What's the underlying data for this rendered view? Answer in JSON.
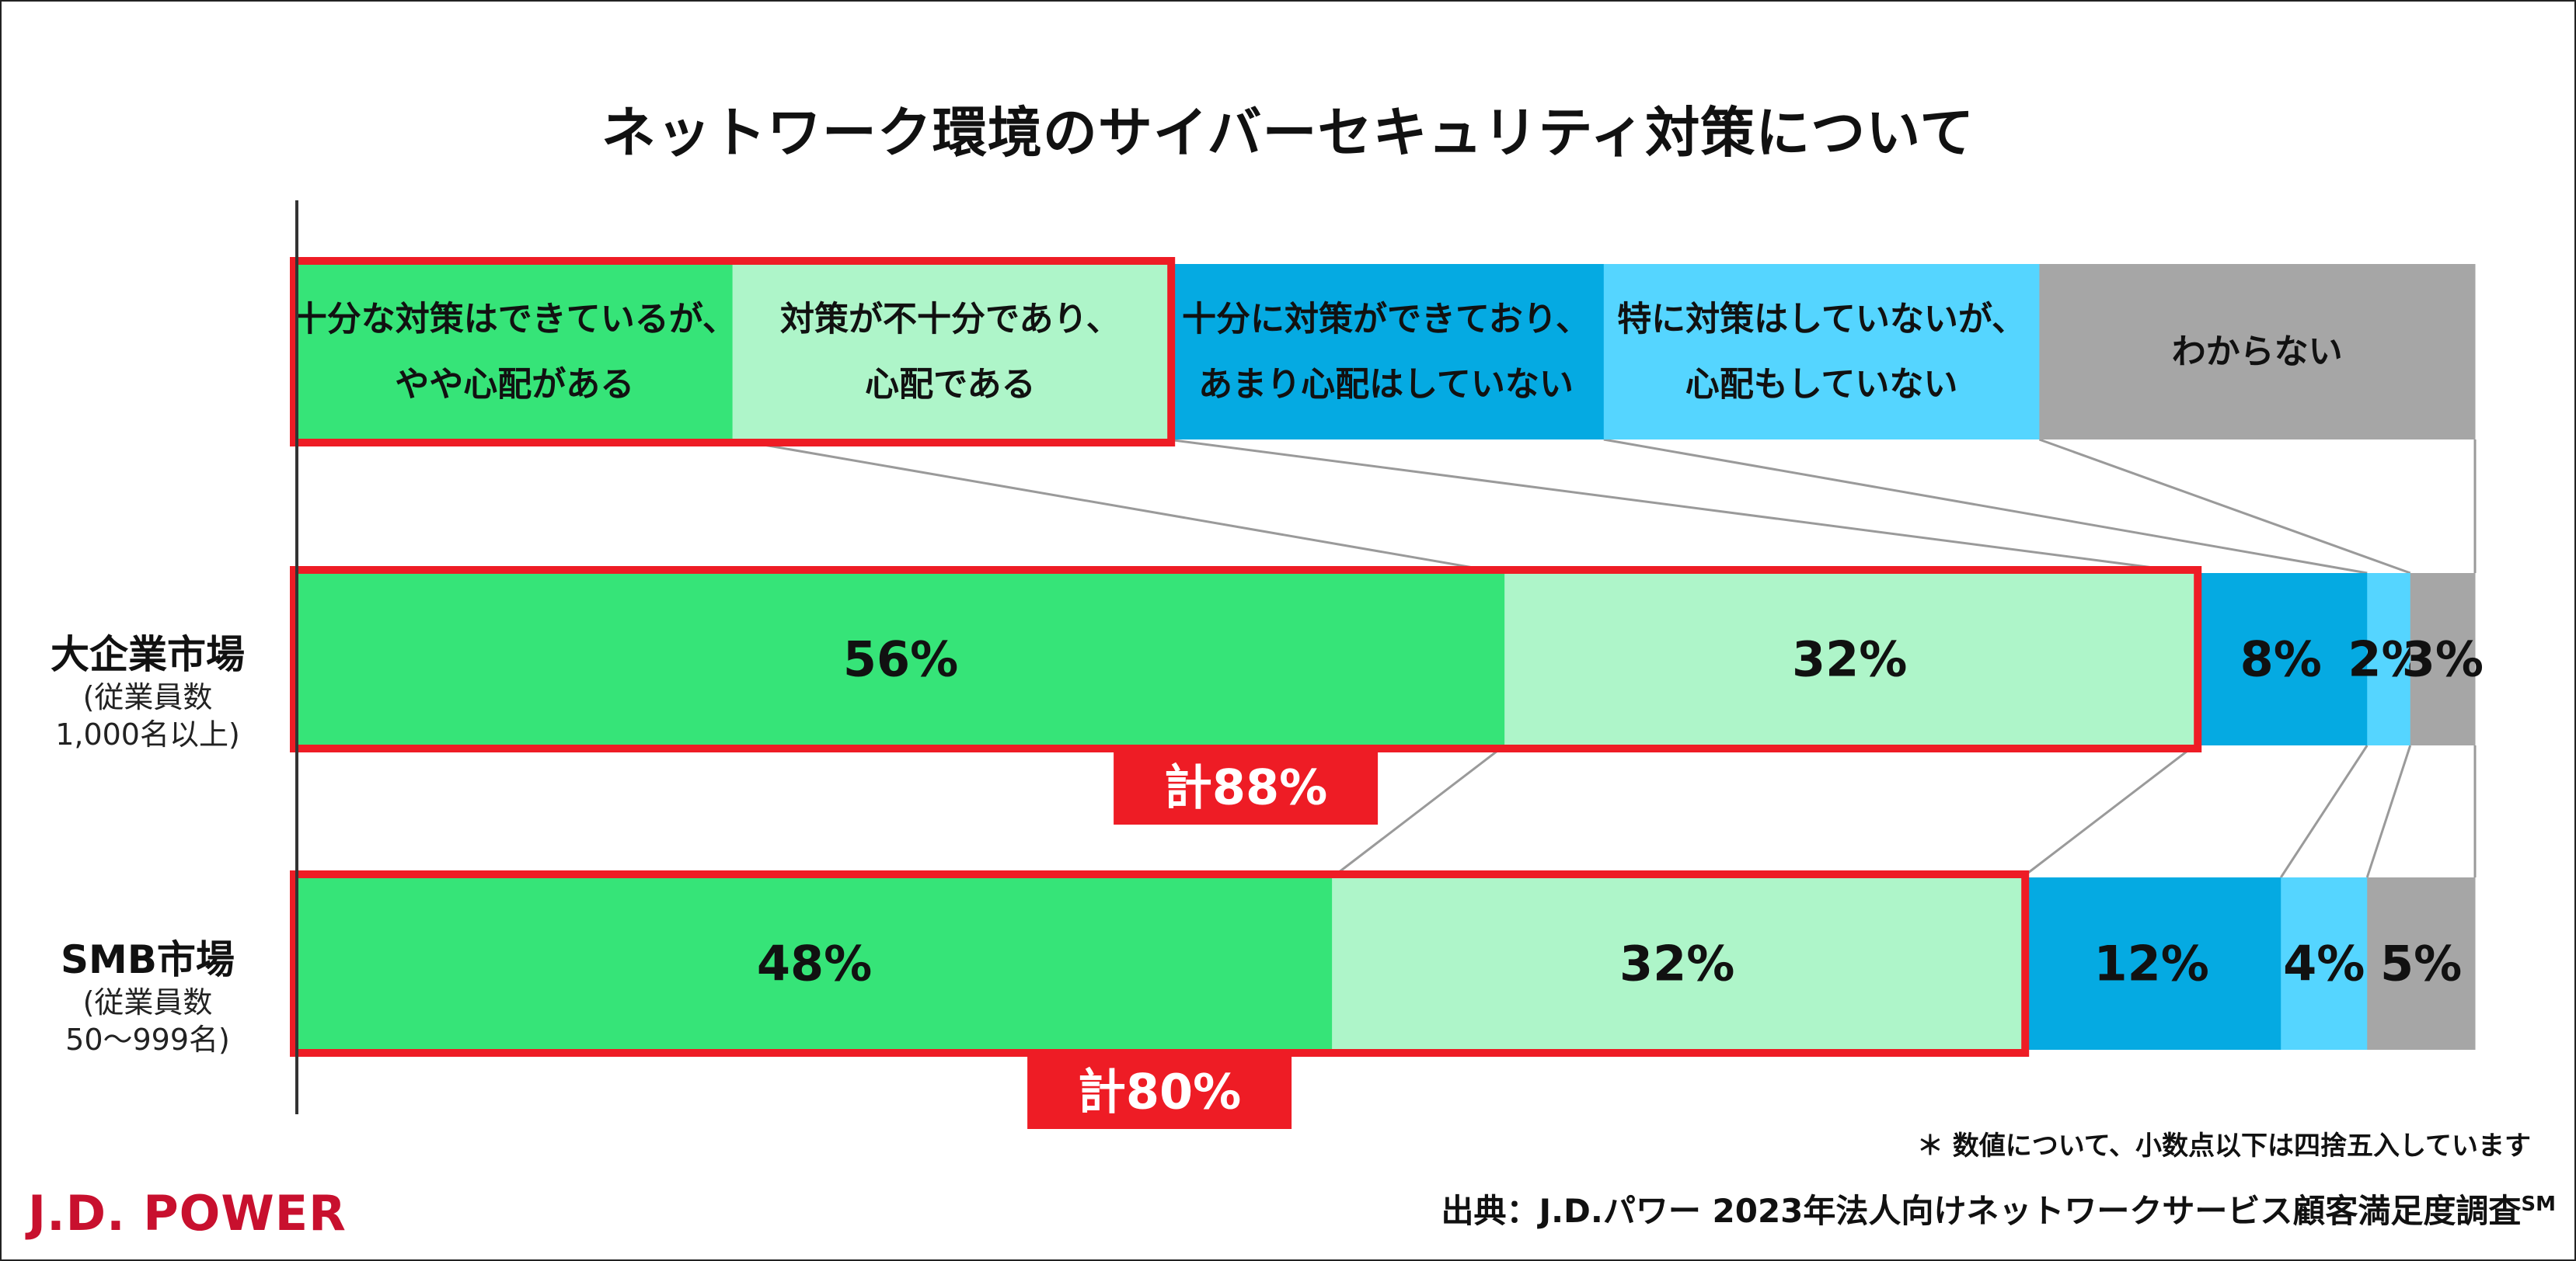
{
  "title": "ネットワーク環境のサイバーセキュリティ対策について",
  "legend": [
    {
      "line1": "十分な対策はできているが、",
      "line2": "やや心配がある",
      "color": "#36e478"
    },
    {
      "line1": "対策が不十分であり、",
      "line2": "心配である",
      "color": "#aef5c9"
    },
    {
      "line1": "十分に対策ができており、",
      "line2": "あまり心配はしていない",
      "color": "#05aae2"
    },
    {
      "line1": "特に対策はしていないが、",
      "line2": "心配もしていない",
      "color": "#55d5ff"
    },
    {
      "line1": "わからない",
      "line2": "",
      "color": "#a6a6a6"
    }
  ],
  "rows": [
    {
      "main": "大企業市場",
      "sub1": "(従業員数",
      "sub2": "1,000名以上)",
      "total_label": "計88%"
    },
    {
      "main": "SMB市場",
      "sub1": "(従業員数",
      "sub2": "50～999名)",
      "total_label": "計80%"
    }
  ],
  "highlight_color": "#ee1c25",
  "chart_data": {
    "type": "bar",
    "orientation": "horizontal",
    "stacked": true,
    "title": "ネットワーク環境のサイバーセキュリティ対策について",
    "categories": [
      "大企業市場",
      "SMB市場"
    ],
    "series": [
      {
        "name": "十分な対策はできているが、やや心配がある",
        "values": [
          56,
          48
        ],
        "color": "#36e478"
      },
      {
        "name": "対策が不十分であり、心配である",
        "values": [
          32,
          32
        ],
        "color": "#aef5c9"
      },
      {
        "name": "十分に対策ができており、あまり心配はしていない",
        "values": [
          8,
          12
        ],
        "color": "#05aae2"
      },
      {
        "name": "特に対策はしていないが、心配もしていない",
        "values": [
          2,
          4
        ],
        "color": "#55d5ff"
      },
      {
        "name": "わからない",
        "values": [
          3,
          5
        ],
        "color": "#a6a6a6"
      }
    ],
    "value_labels": [
      [
        "56%",
        "32%",
        "8%",
        "2%",
        "3%"
      ],
      [
        "48%",
        "32%",
        "12%",
        "4%",
        "5%"
      ]
    ],
    "totals": [
      "計88%",
      "計80%"
    ],
    "legend_position": "top"
  },
  "footnote": "＊ 数値について、小数点以下は四捨五入しています",
  "source_text": "出典：J.D.パワー 2023年法人向けネットワークサービス顧客満足度調査",
  "source_mark": "SM",
  "logo_text": "J.D. POWER"
}
